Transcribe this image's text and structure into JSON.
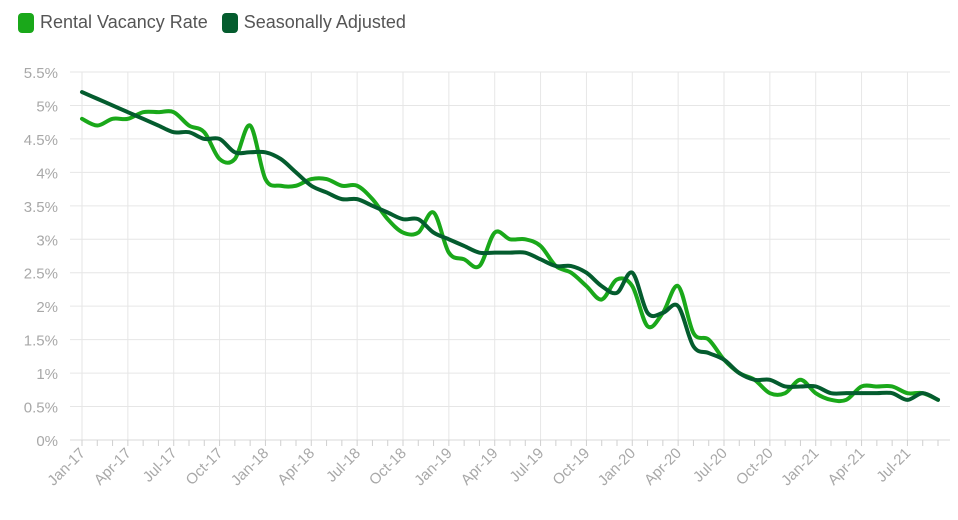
{
  "chart_data": {
    "type": "line",
    "title": "",
    "xlabel": "",
    "ylabel": "",
    "ylim": [
      0,
      5.5
    ],
    "yticks": [
      "0%",
      "0.5%",
      "1%",
      "1.5%",
      "2%",
      "2.5%",
      "3%",
      "3.5%",
      "4%",
      "4.5%",
      "5%",
      "5.5%"
    ],
    "x_tick_labels": [
      "Jan-17",
      "Apr-17",
      "Jul-17",
      "Oct-17",
      "Jan-18",
      "Apr-18",
      "Jul-18",
      "Oct-18",
      "Jan-19",
      "Apr-19",
      "Jul-19",
      "Oct-19",
      "Jan-20",
      "Apr-20",
      "Jul-20",
      "Oct-20",
      "Jan-21",
      "Apr-21",
      "Jul-21"
    ],
    "months_count": 57,
    "series": [
      {
        "name": "Rental Vacancy Rate",
        "color": "#1aa81a",
        "values": [
          4.8,
          4.7,
          4.8,
          4.8,
          4.9,
          4.9,
          4.9,
          4.7,
          4.6,
          4.2,
          4.2,
          4.7,
          3.9,
          3.8,
          3.8,
          3.9,
          3.9,
          3.8,
          3.8,
          3.6,
          3.3,
          3.1,
          3.1,
          3.4,
          2.8,
          2.7,
          2.6,
          3.1,
          3.0,
          3.0,
          2.9,
          2.6,
          2.5,
          2.3,
          2.1,
          2.4,
          2.3,
          1.7,
          1.9,
          2.3,
          1.6,
          1.5,
          1.2,
          1.0,
          0.9,
          0.7,
          0.7,
          0.9,
          0.7,
          0.6,
          0.6,
          0.8,
          0.8,
          0.8,
          0.7,
          0.7,
          0.6
        ]
      },
      {
        "name": "Seasonally Adjusted",
        "color": "#045c2e",
        "values": [
          5.2,
          5.1,
          5.0,
          4.9,
          4.8,
          4.7,
          4.6,
          4.6,
          4.5,
          4.5,
          4.3,
          4.3,
          4.3,
          4.2,
          4.0,
          3.8,
          3.7,
          3.6,
          3.6,
          3.5,
          3.4,
          3.3,
          3.3,
          3.1,
          3.0,
          2.9,
          2.8,
          2.8,
          2.8,
          2.8,
          2.7,
          2.6,
          2.6,
          2.5,
          2.3,
          2.2,
          2.5,
          1.9,
          1.9,
          2.0,
          1.4,
          1.3,
          1.2,
          1.0,
          0.9,
          0.9,
          0.8,
          0.8,
          0.8,
          0.7,
          0.7,
          0.7,
          0.7,
          0.7,
          0.6,
          0.7,
          0.6
        ]
      }
    ]
  }
}
